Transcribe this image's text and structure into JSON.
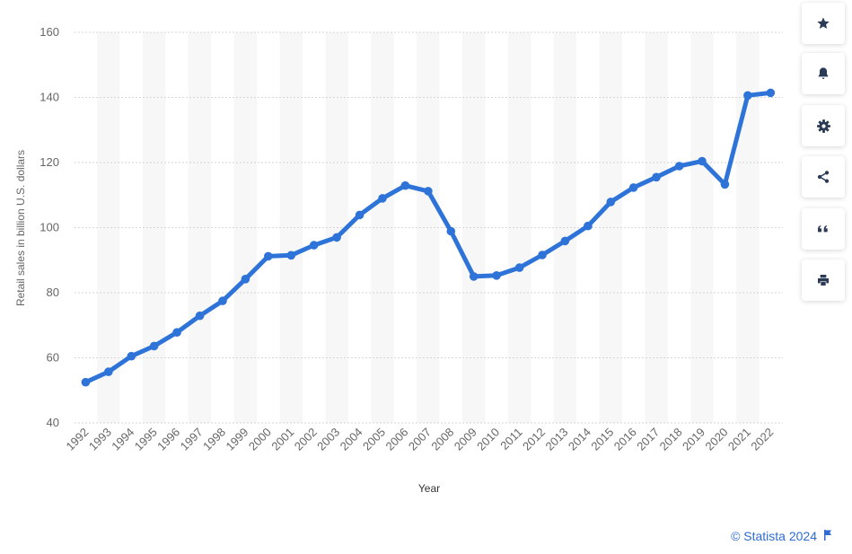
{
  "chart_data": {
    "type": "line",
    "x": [
      "1992",
      "1993",
      "1994",
      "1995",
      "1996",
      "1997",
      "1998",
      "1999",
      "2000",
      "2001",
      "2002",
      "2003",
      "2004",
      "2005",
      "2006",
      "2007",
      "2008",
      "2009",
      "2010",
      "2011",
      "2012",
      "2013",
      "2014",
      "2015",
      "2016",
      "2017",
      "2018",
      "2019",
      "2020",
      "2021",
      "2022"
    ],
    "series": [
      {
        "values": [
          52.5,
          55.7,
          60.5,
          63.6,
          67.8,
          72.9,
          77.5,
          84.2,
          91.2,
          91.5,
          94.6,
          97.0,
          103.9,
          109.0,
          112.9,
          111.2,
          98.9,
          85.0,
          85.3,
          87.7,
          91.6,
          95.9,
          100.5,
          107.9,
          112.3,
          115.5,
          118.9,
          120.4,
          113.3,
          140.6,
          141.4
        ]
      }
    ],
    "xlabel": "Year",
    "ylabel": "Retail sales in billion U.S. dollars",
    "yticks": [
      "40",
      "60",
      "80",
      "100",
      "120",
      "140",
      "160"
    ],
    "ylim": [
      40,
      160
    ],
    "grid": true,
    "line_color": "#2e74d8",
    "band_color": "#f7f7f7"
  },
  "toolbar": [
    {
      "icon": "star-icon"
    },
    {
      "icon": "bell-icon"
    },
    {
      "icon": "gear-icon"
    },
    {
      "icon": "share-icon"
    },
    {
      "icon": "quote-icon"
    },
    {
      "icon": "print-icon"
    }
  ],
  "credit": {
    "text": "© Statista 2024",
    "icon": "flag-icon",
    "color": "#2f6bd0"
  }
}
